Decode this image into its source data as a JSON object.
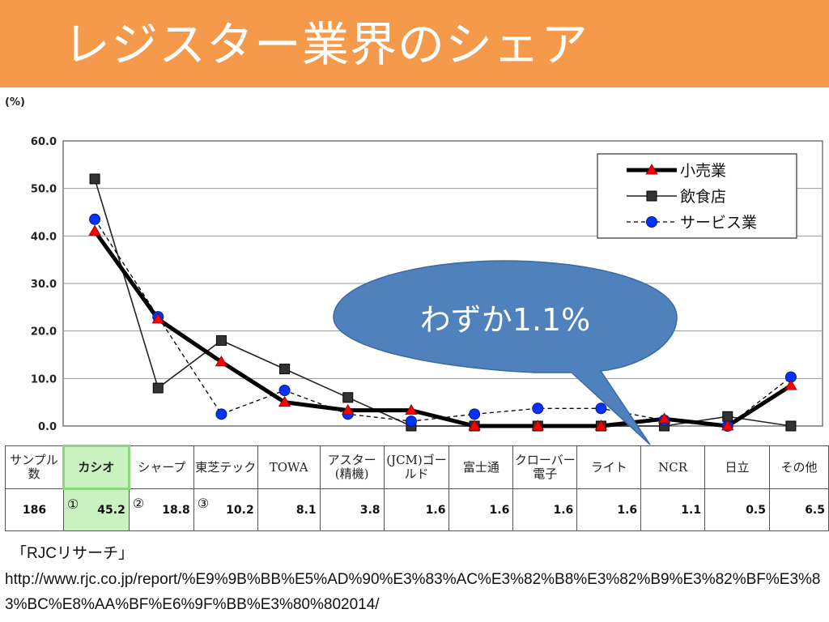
{
  "slide": {
    "title": "レジスター業界のシェア",
    "source_label": "「RJCリサーチ」",
    "source_url": "http://www.rjc.co.jp/report/%E9%9B%BB%E5%AD%90%E3%83%AC%E3%82%B8%E3%82%B9%E3%82%BF%E3%83%BC%E8%AA%BF%E6%9F%BB%E3%80%802014/",
    "callout": "わずか1.1%"
  },
  "colors": {
    "title_bar": "#f59a4a",
    "callout": "#4f81bd",
    "series_service": "#0033ff",
    "retail_marker": "#ff0000",
    "highlight": "#c9f2c0"
  },
  "chart_data": {
    "type": "line",
    "ylabel": "(%)",
    "ylim": [
      0,
      60
    ],
    "yticks": [
      "0.0",
      "10.0",
      "20.0",
      "30.0",
      "40.0",
      "50.0",
      "60.0"
    ],
    "grid": true,
    "legend_position": "top-right",
    "categories": [
      "カシオ",
      "シャープ",
      "東芝テック",
      "TOWA",
      "アスター(精機)",
      "(JCM)ゴールド",
      "富士通",
      "クローバー電子",
      "ライト",
      "NCR",
      "日立",
      "その他"
    ],
    "series": [
      {
        "name": "小売業",
        "values": [
          41,
          22.5,
          13.5,
          5,
          3.3,
          3.3,
          0,
          0,
          0,
          1.5,
          0,
          8.5
        ]
      },
      {
        "name": "飲食店",
        "values": [
          52,
          8,
          18,
          12,
          6,
          0,
          0,
          0,
          0,
          0,
          2,
          0
        ]
      },
      {
        "name": "サービス業",
        "values": [
          43.5,
          23,
          2.5,
          7.5,
          2.5,
          1,
          2.5,
          3.7,
          3.7,
          1.2,
          0,
          10.3
        ]
      }
    ]
  },
  "table": {
    "header_label": "サンプル数",
    "sample_size": "186",
    "columns": [
      {
        "name": "カシオ",
        "value": "45.2",
        "rank": "①"
      },
      {
        "name": "シャープ",
        "value": "18.8",
        "rank": "②"
      },
      {
        "name": "東芝テック",
        "value": "10.2",
        "rank": "③"
      },
      {
        "name": "TOWA",
        "value": "8.1",
        "rank": ""
      },
      {
        "name": "アスター(精機)",
        "value": "3.8",
        "rank": ""
      },
      {
        "name": "(JCM)ゴールド",
        "value": "1.6",
        "rank": ""
      },
      {
        "name": "富士通",
        "value": "1.6",
        "rank": ""
      },
      {
        "name": "クローバー電子",
        "value": "1.6",
        "rank": ""
      },
      {
        "name": "ライト",
        "value": "1.6",
        "rank": ""
      },
      {
        "name": "NCR",
        "value": "1.1",
        "rank": ""
      },
      {
        "name": "日立",
        "value": "0.5",
        "rank": ""
      },
      {
        "name": "その他",
        "value": "6.5",
        "rank": ""
      }
    ]
  }
}
